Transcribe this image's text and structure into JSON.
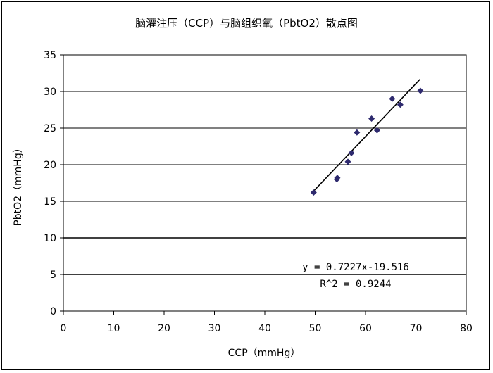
{
  "chart_data": {
    "type": "scatter",
    "title": "脑灌注压（CCP）与脑组织氧（PbtO2）散点图",
    "xlabel": "CCP（mmHg）",
    "ylabel": "PbtO2（mmHg）",
    "xlim": [
      0,
      80
    ],
    "ylim": [
      0,
      35
    ],
    "xticks": [
      "0",
      "10",
      "20",
      "30",
      "40",
      "50",
      "60",
      "70",
      "80"
    ],
    "yticks": [
      "0",
      "5",
      "10",
      "15",
      "20",
      "25",
      "30",
      "35"
    ],
    "grid": "horizontal",
    "marker_color": "#2e2a6e",
    "points": [
      {
        "x": 49.7,
        "y": 16.2
      },
      {
        "x": 54.3,
        "y": 18.0
      },
      {
        "x": 54.4,
        "y": 18.2
      },
      {
        "x": 56.5,
        "y": 20.4
      },
      {
        "x": 57.2,
        "y": 21.6
      },
      {
        "x": 58.3,
        "y": 24.4
      },
      {
        "x": 61.2,
        "y": 26.3
      },
      {
        "x": 62.3,
        "y": 24.7
      },
      {
        "x": 65.3,
        "y": 29.0
      },
      {
        "x": 66.9,
        "y": 28.2
      },
      {
        "x": 70.9,
        "y": 30.1
      }
    ],
    "trendline": {
      "slope": 0.7227,
      "intercept": -19.516,
      "x_range": [
        49.5,
        70.8
      ]
    },
    "equation": "y = 0.7227x-19.516",
    "r_squared": "R^2 = 0.9244"
  }
}
